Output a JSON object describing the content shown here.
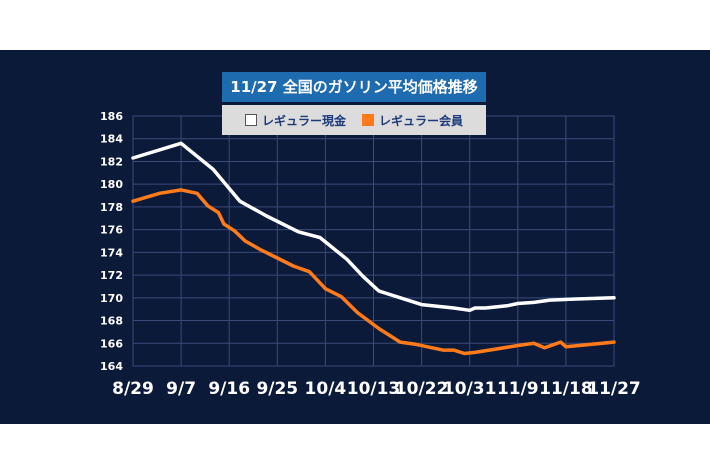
{
  "chart_data": {
    "type": "line",
    "title": "11/27 全国のガソリン平均価格推移",
    "xlabel": "",
    "ylabel": "",
    "ylim": [
      164,
      186
    ],
    "yticks": [
      164,
      166,
      168,
      170,
      172,
      174,
      176,
      178,
      180,
      182,
      184,
      186
    ],
    "xticks": [
      "8/29",
      "9/7",
      "9/16",
      "9/25",
      "10/4",
      "10/13",
      "10/22",
      "10/31",
      "11/9",
      "11/18",
      "11/27"
    ],
    "grid": true,
    "legend_placement": "top-center",
    "series": [
      {
        "name": "レギュラー現金",
        "color": "#ffffff",
        "values": [
          182.3,
          183.6,
          181.3,
          178.5,
          177.2,
          175.8,
          175.3,
          173.4,
          171.9,
          170.6,
          169.4,
          169.1,
          168.9,
          169.1,
          169.1,
          169.2,
          169.3,
          169.5,
          169.6,
          169.8,
          169.9,
          170.0
        ],
        "x_days": [
          0,
          9,
          15,
          20,
          25,
          31,
          35,
          40,
          43,
          46,
          54,
          60,
          63,
          64,
          66,
          68,
          70,
          72,
          75,
          78,
          83,
          90
        ]
      },
      {
        "name": "レギュラー会員",
        "color": "#ff7a1a",
        "values": [
          178.5,
          179.2,
          179.5,
          179.2,
          178.1,
          177.5,
          176.5,
          175.9,
          175.0,
          174.2,
          173.5,
          172.8,
          172.3,
          170.8,
          170.1,
          168.7,
          167.3,
          166.1,
          165.9,
          165.6,
          165.4,
          165.4,
          165.1,
          165.2,
          165.5,
          165.8,
          166.0,
          165.6,
          166.1,
          165.7,
          166.1
        ],
        "x_days": [
          0,
          5,
          9,
          12,
          14,
          16,
          17,
          19,
          21,
          24,
          27,
          30,
          33,
          36,
          39,
          42,
          46,
          50,
          53,
          56,
          58,
          60,
          62,
          64,
          68,
          72,
          75,
          77,
          80,
          81,
          90
        ]
      }
    ]
  },
  "legend": {
    "cash_label": "レギュラー現金",
    "member_label": "レギュラー会員",
    "cash_color": "#ffffff",
    "member_color": "#ff7a1a"
  }
}
